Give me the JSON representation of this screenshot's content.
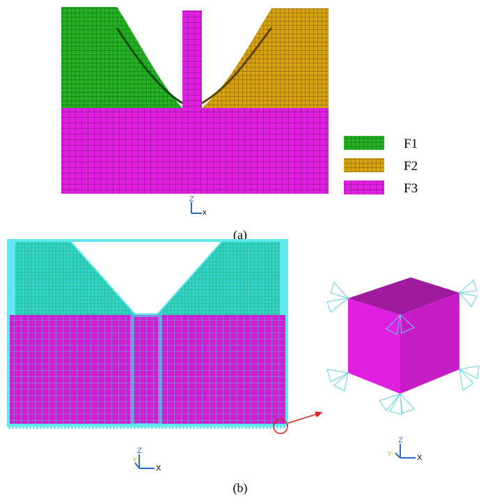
{
  "panel_a": {
    "legend": [
      "F1",
      "F2",
      "F3"
    ],
    "triad": {
      "z": "Z",
      "x": "x"
    },
    "caption": "(a)"
  },
  "panel_b": {
    "left_triad": {
      "z": "Z",
      "y": "Y",
      "x": "X"
    },
    "right_triad": {
      "z": "Z",
      "y": "Y",
      "x": "X"
    },
    "caption": "(b)"
  }
}
